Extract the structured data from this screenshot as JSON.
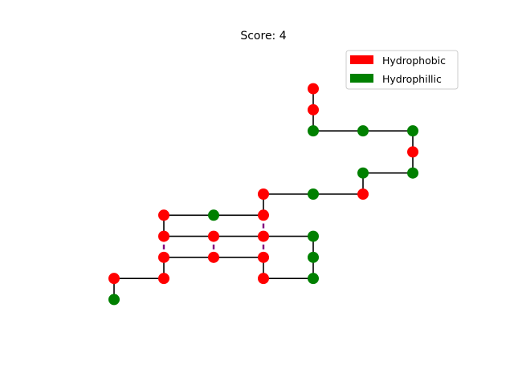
{
  "chart_data": {
    "type": "scatter",
    "title": "Score: 4",
    "xlabel": "",
    "ylabel": "",
    "axes_visible": false,
    "grid": false,
    "legend_placement": "top-right",
    "colors": {
      "hydrophobic": "#ff0000",
      "hydrophilic": "#008000",
      "bond": "#000000",
      "contact": "#800080"
    },
    "legend": [
      {
        "label": "Hydrophobic",
        "type": "H"
      },
      {
        "label": "Hydrophillic",
        "type": "P"
      }
    ],
    "chain": [
      {
        "x": 0,
        "y": 0,
        "type": "P"
      },
      {
        "x": 0,
        "y": 1,
        "type": "H"
      },
      {
        "x": 1,
        "y": 1,
        "type": "H"
      },
      {
        "x": 1,
        "y": 2,
        "type": "H"
      },
      {
        "x": 2,
        "y": 2,
        "type": "H"
      },
      {
        "x": 3,
        "y": 2,
        "type": "H"
      },
      {
        "x": 3,
        "y": 1,
        "type": "H"
      },
      {
        "x": 4,
        "y": 1,
        "type": "P"
      },
      {
        "x": 4,
        "y": 2,
        "type": "P"
      },
      {
        "x": 4,
        "y": 3,
        "type": "P"
      },
      {
        "x": 3,
        "y": 3,
        "type": "H"
      },
      {
        "x": 2,
        "y": 3,
        "type": "H"
      },
      {
        "x": 1,
        "y": 3,
        "type": "H"
      },
      {
        "x": 1,
        "y": 4,
        "type": "H"
      },
      {
        "x": 2,
        "y": 4,
        "type": "P"
      },
      {
        "x": 3,
        "y": 4,
        "type": "H"
      },
      {
        "x": 3,
        "y": 5,
        "type": "H"
      },
      {
        "x": 4,
        "y": 5,
        "type": "P"
      },
      {
        "x": 5,
        "y": 5,
        "type": "H"
      },
      {
        "x": 5,
        "y": 6,
        "type": "P"
      },
      {
        "x": 6,
        "y": 6,
        "type": "P"
      },
      {
        "x": 6,
        "y": 7,
        "type": "H"
      },
      {
        "x": 6,
        "y": 8,
        "type": "P"
      },
      {
        "x": 5,
        "y": 8,
        "type": "P"
      },
      {
        "x": 4,
        "y": 8,
        "type": "P"
      },
      {
        "x": 4,
        "y": 9,
        "type": "H"
      },
      {
        "x": 4,
        "y": 10,
        "type": "H"
      }
    ],
    "contacts": [
      [
        {
          "x": 1,
          "y": 2
        },
        {
          "x": 1,
          "y": 3
        }
      ],
      [
        {
          "x": 2,
          "y": 2
        },
        {
          "x": 2,
          "y": 3
        }
      ],
      [
        {
          "x": 3,
          "y": 2
        },
        {
          "x": 3,
          "y": 3
        }
      ],
      [
        {
          "x": 3,
          "y": 3
        },
        {
          "x": 3,
          "y": 4
        }
      ]
    ],
    "xlim": [
      -1,
      7
    ],
    "ylim": [
      -2,
      12
    ]
  }
}
